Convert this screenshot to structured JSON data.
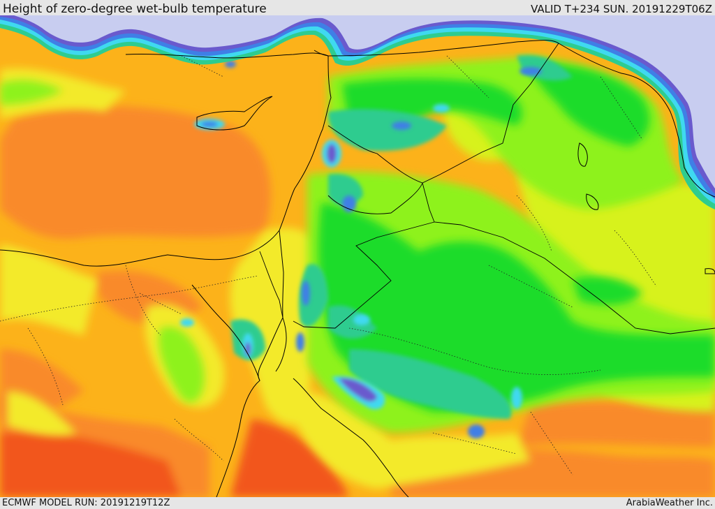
{
  "header": {
    "title": "Height of zero-degree wet-bulb temperature",
    "valid": "VALID T+234 SUN. 20191229T06Z"
  },
  "footer": {
    "model_run": "ECMWF MODEL RUN: 20191219T12Z",
    "credit": "ArabiaWeather Inc."
  },
  "map": {
    "palette": {
      "no_data": "#c8cdf0",
      "purple": "#6a5acd",
      "blue": "#3f7fe6",
      "cyan": "#3fd9f0",
      "teal": "#2ecc8f",
      "green": "#1fdc2a",
      "light_green": "#8ef21a",
      "yellow_green": "#d7f21f",
      "yellow": "#f3ea2c",
      "orange": "#fcb21a",
      "dark_orange": "#f98a2a",
      "red_orange": "#f2561e"
    }
  }
}
